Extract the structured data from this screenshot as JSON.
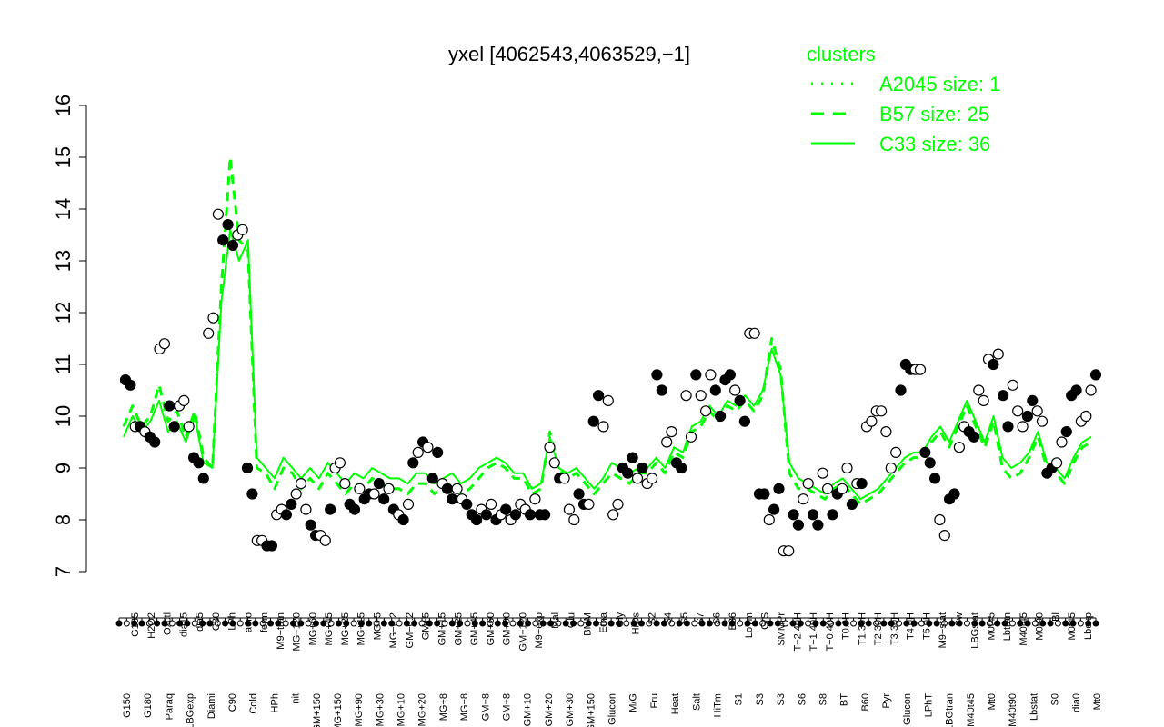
{
  "chart_data": {
    "type": "line",
    "title": "yxel [4062543,4063529,−1]",
    "xlabel": "",
    "ylabel": "",
    "ylim": [
      7,
      16
    ],
    "yticks": [
      7,
      8,
      9,
      10,
      11,
      12,
      13,
      14,
      15,
      16
    ],
    "grid": false,
    "legend_title": "clusters",
    "legend_position": "top-right",
    "legend": [
      {
        "name": "A2045 size: 1",
        "style": "dotted",
        "color": "#00ff00"
      },
      {
        "name": "B57 size: 25",
        "style": "dashed",
        "color": "#00ff00"
      },
      {
        "name": "C33 size: 36",
        "style": "solid",
        "color": "#00ff00"
      }
    ],
    "x_labels_upper": [
      "G135",
      "H2O2",
      "Oxctl",
      "dia15",
      "dia5",
      "C30",
      "LPh",
      "aero",
      "ferm",
      "M9−tran",
      "MG+120",
      "MG+60",
      "MG+45",
      "MG+25",
      "MG+15",
      "MG+5",
      "MG−0.2",
      "GM−0.2",
      "GM+5",
      "GM+15",
      "GM+25",
      "GM+45",
      "GM+60",
      "GM+90",
      "GM+120",
      "M9−exp",
      "Mal",
      "Glu",
      "BMM",
      "Etha",
      "Gly",
      "HiOs",
      "S2",
      "S4",
      "S5",
      "S7",
      "S6",
      "B36",
      "LoTm",
      "G/S",
      "SMMPr",
      "T−2.40H",
      "T−1.40H",
      "T−0.40H",
      "T0.0H",
      "T1.30H",
      "T2.30H",
      "T3.30H",
      "T4.0H",
      "T5.0H",
      "M9−stat",
      "Sw",
      "LBGstat",
      "M0t45",
      "Lbtran",
      "M40t45",
      "M0t90",
      "Bl",
      "M0t45",
      "Lbexp"
    ],
    "x_labels_lower": [
      "G150",
      "G180",
      "Paraq",
      "LBGexp",
      "Diami",
      "C90",
      "Cold",
      "HPh",
      "nit",
      "GM+150",
      "MG+150",
      "MG+90",
      "MG+30",
      "MG+10",
      "MG+20",
      "MG+8",
      "MG−8",
      "GM−8",
      "GM+8",
      "GM+10",
      "GM+20",
      "GM+30",
      "GM+150",
      "Glucon",
      "M/G",
      "Fru",
      "Heat",
      "Salt",
      "HiTm",
      "S1",
      "S3",
      "S3",
      "S6",
      "S8",
      "BT",
      "B60",
      "Pyr",
      "Glucon",
      "LPhT",
      "LBGtran",
      "M40t45",
      "Mt0",
      "M40t90",
      "Lbstat",
      "S0",
      "dia0",
      "Mt0"
    ],
    "series": [
      {
        "name": "",
        "style": "solid",
        "values": [
          9.6,
          10.0,
          9.7,
          9.9,
          10.3,
          9.7,
          9.9,
          9.5,
          10.0,
          9.1,
          9.0,
          12.2,
          13.6,
          13.0,
          13.4,
          9.2,
          9.0,
          8.8,
          9.2,
          9.0,
          8.8,
          9.0,
          8.8,
          9.1,
          8.9,
          8.7,
          8.9,
          8.8,
          9.0,
          8.9,
          8.8,
          8.8,
          8.7,
          8.9,
          8.9,
          8.7,
          8.8,
          8.9,
          8.7,
          8.8,
          9.0,
          9.1,
          9.2,
          9.1,
          8.9,
          8.9,
          8.6,
          8.7,
          9.6,
          9.0,
          8.9,
          9.0,
          8.8,
          8.6,
          8.8,
          9.1,
          9.0,
          8.9,
          9.0,
          9.0,
          9.2,
          9.0,
          9.4,
          9.3,
          9.8,
          9.9,
          10.2,
          10.0,
          10.3,
          10.2,
          10.4,
          10.2,
          10.5,
          11.3,
          10.8,
          9.1,
          8.8,
          8.7,
          8.6,
          8.5,
          8.7,
          8.8,
          8.6,
          8.4,
          8.5,
          8.6,
          8.8,
          9.0,
          9.2,
          9.3,
          9.3,
          9.6,
          9.8,
          9.5,
          9.9,
          10.3,
          9.9,
          9.5,
          10.0,
          9.2,
          9.0,
          9.1,
          9.3,
          9.7,
          9.1,
          9.0,
          8.8,
          9.2,
          9.5,
          9.6
        ]
      },
      {
        "name": "",
        "style": "dashed",
        "values": [
          9.8,
          10.2,
          9.8,
          10.0,
          10.6,
          9.9,
          10.1,
          9.6,
          10.1,
          9.2,
          9.0,
          12.5,
          15.0,
          13.4,
          13.2,
          9.0,
          8.9,
          8.6,
          9.0,
          8.9,
          8.6,
          8.8,
          8.6,
          8.9,
          8.7,
          8.5,
          8.7,
          8.6,
          8.8,
          8.7,
          8.6,
          8.6,
          8.5,
          8.7,
          8.7,
          8.5,
          8.6,
          8.7,
          8.5,
          8.6,
          8.8,
          9.0,
          9.1,
          9.0,
          8.8,
          8.8,
          8.5,
          8.6,
          9.7,
          9.0,
          8.8,
          8.9,
          8.7,
          8.5,
          8.7,
          8.9,
          8.8,
          8.7,
          8.9,
          8.9,
          9.1,
          8.9,
          9.3,
          9.2,
          9.7,
          9.8,
          10.1,
          9.9,
          10.2,
          10.1,
          10.3,
          10.1,
          10.4,
          11.5,
          10.9,
          8.9,
          8.6,
          8.6,
          8.5,
          8.4,
          8.6,
          8.7,
          8.5,
          8.3,
          8.4,
          8.5,
          8.7,
          8.9,
          9.1,
          9.2,
          9.2,
          9.5,
          9.7,
          9.4,
          9.8,
          10.2,
          9.8,
          9.4,
          9.9,
          9.0,
          8.8,
          8.9,
          9.2,
          9.6,
          9.0,
          8.9,
          8.7,
          9.1,
          9.4,
          9.5
        ]
      }
    ],
    "points": [
      {
        "y": 10.7,
        "f": 1
      },
      {
        "y": 10.6,
        "f": 1
      },
      {
        "y": 9.8,
        "f": 0
      },
      {
        "y": 9.8,
        "f": 1
      },
      {
        "y": 9.7,
        "f": 0
      },
      {
        "y": 9.6,
        "f": 1
      },
      {
        "y": 9.5,
        "f": 1
      },
      {
        "y": 11.3,
        "f": 0
      },
      {
        "y": 11.4,
        "f": 0
      },
      {
        "y": 10.2,
        "f": 1
      },
      {
        "y": 9.8,
        "f": 1
      },
      {
        "y": 10.2,
        "f": 0
      },
      {
        "y": 10.3,
        "f": 0
      },
      {
        "y": 9.8,
        "f": 0
      },
      {
        "y": 9.2,
        "f": 1
      },
      {
        "y": 9.1,
        "f": 1
      },
      {
        "y": 8.8,
        "f": 1
      },
      {
        "y": 11.6,
        "f": 0
      },
      {
        "y": 11.9,
        "f": 0
      },
      {
        "y": 13.9,
        "f": 0
      },
      {
        "y": 13.4,
        "f": 1
      },
      {
        "y": 13.7,
        "f": 1
      },
      {
        "y": 13.3,
        "f": 1
      },
      {
        "y": 13.5,
        "f": 0
      },
      {
        "y": 13.6,
        "f": 0
      },
      {
        "y": 9.0,
        "f": 1
      },
      {
        "y": 8.5,
        "f": 1
      },
      {
        "y": 7.6,
        "f": 0
      },
      {
        "y": 7.6,
        "f": 0
      },
      {
        "y": 7.5,
        "f": 1
      },
      {
        "y": 7.5,
        "f": 1
      },
      {
        "y": 8.1,
        "f": 0
      },
      {
        "y": 8.2,
        "f": 0
      },
      {
        "y": 8.1,
        "f": 1
      },
      {
        "y": 8.3,
        "f": 1
      },
      {
        "y": 8.5,
        "f": 0
      },
      {
        "y": 8.7,
        "f": 0
      },
      {
        "y": 8.2,
        "f": 0
      },
      {
        "y": 7.9,
        "f": 1
      },
      {
        "y": 7.7,
        "f": 1
      },
      {
        "y": 7.7,
        "f": 0
      },
      {
        "y": 7.6,
        "f": 0
      },
      {
        "y": 8.2,
        "f": 1
      },
      {
        "y": 9.0,
        "f": 0
      },
      {
        "y": 9.1,
        "f": 0
      },
      {
        "y": 8.7,
        "f": 0
      },
      {
        "y": 8.3,
        "f": 1
      },
      {
        "y": 8.2,
        "f": 1
      },
      {
        "y": 8.6,
        "f": 0
      },
      {
        "y": 8.4,
        "f": 1
      },
      {
        "y": 8.5,
        "f": 1
      },
      {
        "y": 8.5,
        "f": 0
      },
      {
        "y": 8.7,
        "f": 1
      },
      {
        "y": 8.4,
        "f": 1
      },
      {
        "y": 8.6,
        "f": 0
      },
      {
        "y": 8.2,
        "f": 1
      },
      {
        "y": 8.1,
        "f": 0
      },
      {
        "y": 8.0,
        "f": 1
      },
      {
        "y": 8.3,
        "f": 0
      },
      {
        "y": 9.1,
        "f": 1
      },
      {
        "y": 9.3,
        "f": 0
      },
      {
        "y": 9.5,
        "f": 1
      },
      {
        "y": 9.4,
        "f": 0
      },
      {
        "y": 8.8,
        "f": 1
      },
      {
        "y": 9.3,
        "f": 1
      },
      {
        "y": 8.7,
        "f": 0
      },
      {
        "y": 8.6,
        "f": 1
      },
      {
        "y": 8.4,
        "f": 1
      },
      {
        "y": 8.6,
        "f": 0
      },
      {
        "y": 8.4,
        "f": 0
      },
      {
        "y": 8.3,
        "f": 1
      },
      {
        "y": 8.1,
        "f": 1
      },
      {
        "y": 8.0,
        "f": 1
      },
      {
        "y": 8.2,
        "f": 0
      },
      {
        "y": 8.1,
        "f": 1
      },
      {
        "y": 8.3,
        "f": 0
      },
      {
        "y": 8.0,
        "f": 1
      },
      {
        "y": 8.1,
        "f": 0
      },
      {
        "y": 8.2,
        "f": 1
      },
      {
        "y": 8.0,
        "f": 0
      },
      {
        "y": 8.1,
        "f": 1
      },
      {
        "y": 8.3,
        "f": 0
      },
      {
        "y": 8.2,
        "f": 0
      },
      {
        "y": 8.1,
        "f": 1
      },
      {
        "y": 8.4,
        "f": 0
      },
      {
        "y": 8.1,
        "f": 1
      },
      {
        "y": 8.1,
        "f": 1
      },
      {
        "y": 9.4,
        "f": 0
      },
      {
        "y": 9.1,
        "f": 0
      },
      {
        "y": 8.8,
        "f": 1
      },
      {
        "y": 8.8,
        "f": 0
      },
      {
        "y": 8.2,
        "f": 0
      },
      {
        "y": 8.0,
        "f": 0
      },
      {
        "y": 8.5,
        "f": 1
      },
      {
        "y": 8.3,
        "f": 1
      },
      {
        "y": 8.3,
        "f": 0
      },
      {
        "y": 9.9,
        "f": 1
      },
      {
        "y": 10.4,
        "f": 1
      },
      {
        "y": 9.8,
        "f": 0
      },
      {
        "y": 10.3,
        "f": 0
      },
      {
        "y": 8.1,
        "f": 0
      },
      {
        "y": 8.3,
        "f": 0
      },
      {
        "y": 9.0,
        "f": 1
      },
      {
        "y": 8.9,
        "f": 1
      },
      {
        "y": 9.2,
        "f": 1
      },
      {
        "y": 8.8,
        "f": 0
      },
      {
        "y": 9.0,
        "f": 1
      },
      {
        "y": 8.7,
        "f": 0
      },
      {
        "y": 8.8,
        "f": 0
      },
      {
        "y": 10.8,
        "f": 1
      },
      {
        "y": 10.5,
        "f": 1
      },
      {
        "y": 9.5,
        "f": 0
      },
      {
        "y": 9.7,
        "f": 0
      },
      {
        "y": 9.1,
        "f": 1
      },
      {
        "y": 9.0,
        "f": 1
      },
      {
        "y": 10.4,
        "f": 0
      },
      {
        "y": 9.6,
        "f": 0
      },
      {
        "y": 10.8,
        "f": 1
      },
      {
        "y": 10.4,
        "f": 0
      },
      {
        "y": 10.1,
        "f": 0
      },
      {
        "y": 10.8,
        "f": 0
      },
      {
        "y": 10.5,
        "f": 1
      },
      {
        "y": 10.0,
        "f": 1
      },
      {
        "y": 10.7,
        "f": 1
      },
      {
        "y": 10.8,
        "f": 1
      },
      {
        "y": 10.5,
        "f": 0
      },
      {
        "y": 10.3,
        "f": 1
      },
      {
        "y": 9.9,
        "f": 1
      },
      {
        "y": 11.6,
        "f": 0
      },
      {
        "y": 11.6,
        "f": 0
      },
      {
        "y": 8.5,
        "f": 1
      },
      {
        "y": 8.5,
        "f": 1
      },
      {
        "y": 8.0,
        "f": 0
      },
      {
        "y": 8.2,
        "f": 1
      },
      {
        "y": 8.6,
        "f": 1
      },
      {
        "y": 7.4,
        "f": 0
      },
      {
        "y": 7.4,
        "f": 0
      },
      {
        "y": 8.1,
        "f": 1
      },
      {
        "y": 7.9,
        "f": 1
      },
      {
        "y": 8.4,
        "f": 0
      },
      {
        "y": 8.7,
        "f": 0
      },
      {
        "y": 8.1,
        "f": 1
      },
      {
        "y": 7.9,
        "f": 1
      },
      {
        "y": 8.9,
        "f": 0
      },
      {
        "y": 8.6,
        "f": 0
      },
      {
        "y": 8.1,
        "f": 1
      },
      {
        "y": 8.5,
        "f": 1
      },
      {
        "y": 8.6,
        "f": 0
      },
      {
        "y": 9.0,
        "f": 0
      },
      {
        "y": 8.3,
        "f": 1
      },
      {
        "y": 8.7,
        "f": 0
      },
      {
        "y": 8.7,
        "f": 1
      },
      {
        "y": 9.8,
        "f": 0
      },
      {
        "y": 9.9,
        "f": 0
      },
      {
        "y": 10.1,
        "f": 0
      },
      {
        "y": 10.1,
        "f": 0
      },
      {
        "y": 9.7,
        "f": 0
      },
      {
        "y": 9.0,
        "f": 0
      },
      {
        "y": 9.3,
        "f": 0
      },
      {
        "y": 10.5,
        "f": 1
      },
      {
        "y": 11.0,
        "f": 1
      },
      {
        "y": 10.9,
        "f": 1
      },
      {
        "y": 10.9,
        "f": 0
      },
      {
        "y": 10.9,
        "f": 0
      },
      {
        "y": 9.3,
        "f": 1
      },
      {
        "y": 9.1,
        "f": 1
      },
      {
        "y": 8.8,
        "f": 1
      },
      {
        "y": 8.0,
        "f": 0
      },
      {
        "y": 7.7,
        "f": 0
      },
      {
        "y": 8.4,
        "f": 1
      },
      {
        "y": 8.5,
        "f": 1
      },
      {
        "y": 9.4,
        "f": 0
      },
      {
        "y": 9.8,
        "f": 0
      },
      {
        "y": 9.7,
        "f": 1
      },
      {
        "y": 9.6,
        "f": 1
      },
      {
        "y": 10.5,
        "f": 0
      },
      {
        "y": 10.3,
        "f": 0
      },
      {
        "y": 11.1,
        "f": 0
      },
      {
        "y": 11.0,
        "f": 1
      },
      {
        "y": 11.2,
        "f": 0
      },
      {
        "y": 10.4,
        "f": 1
      },
      {
        "y": 9.8,
        "f": 1
      },
      {
        "y": 10.6,
        "f": 0
      },
      {
        "y": 10.1,
        "f": 0
      },
      {
        "y": 9.8,
        "f": 0
      },
      {
        "y": 10.0,
        "f": 1
      },
      {
        "y": 10.3,
        "f": 1
      },
      {
        "y": 10.1,
        "f": 0
      },
      {
        "y": 9.9,
        "f": 0
      },
      {
        "y": 8.9,
        "f": 1
      },
      {
        "y": 9.0,
        "f": 1
      },
      {
        "y": 9.1,
        "f": 0
      },
      {
        "y": 9.5,
        "f": 0
      },
      {
        "y": 9.7,
        "f": 1
      },
      {
        "y": 10.4,
        "f": 1
      },
      {
        "y": 10.5,
        "f": 1
      },
      {
        "y": 9.9,
        "f": 0
      },
      {
        "y": 10.0,
        "f": 0
      },
      {
        "y": 10.5,
        "f": 0
      },
      {
        "y": 10.8,
        "f": 1
      }
    ]
  }
}
